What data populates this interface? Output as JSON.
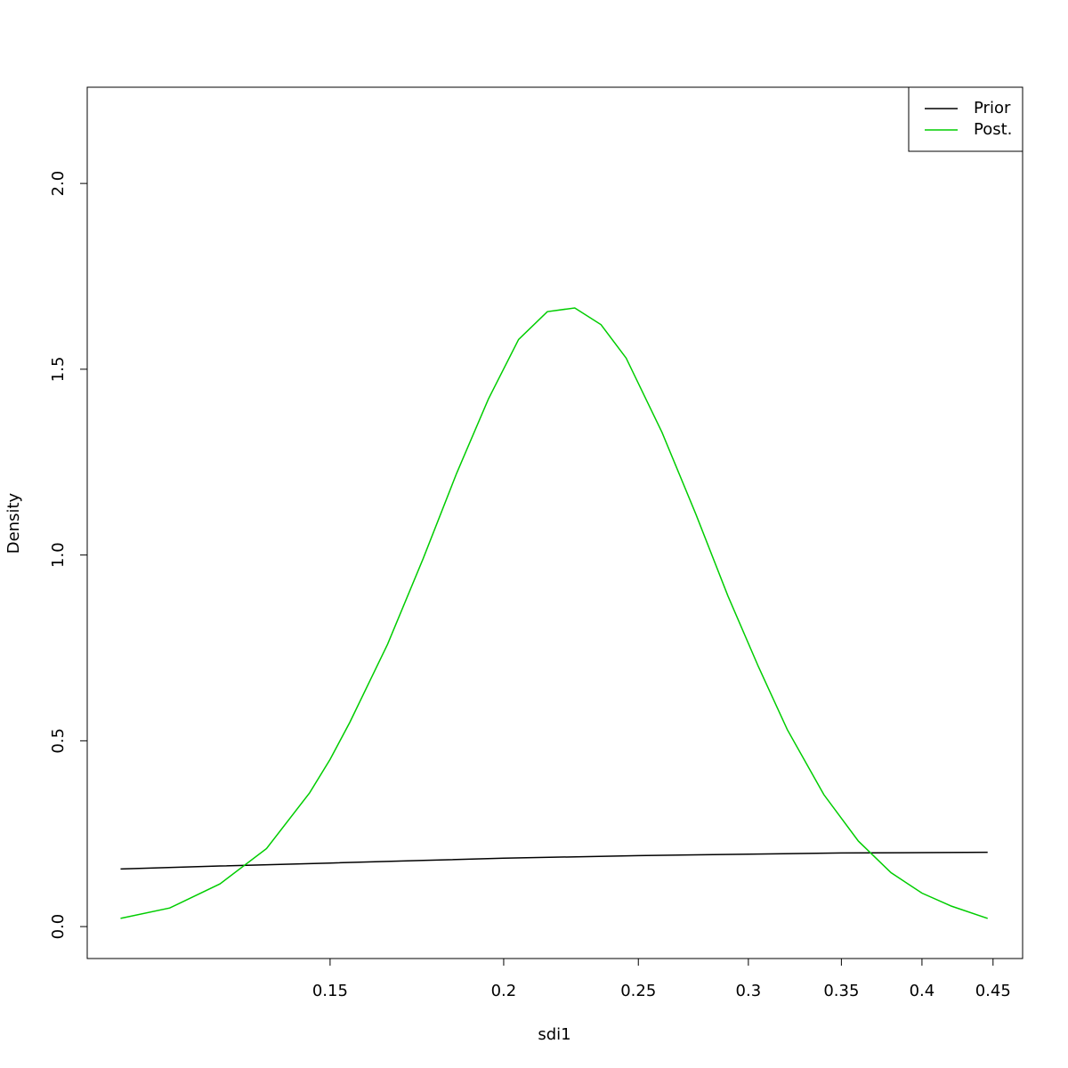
{
  "chart_data": {
    "type": "line",
    "xlabel": "sdi1",
    "ylabel": "Density",
    "xlog": true,
    "xlim": [
      0.1003,
      0.4726
    ],
    "ylim": [
      -0.086,
      2.259
    ],
    "xticks": [
      0.15,
      0.2,
      0.25,
      0.3,
      0.35,
      0.4,
      0.45
    ],
    "yticks": [
      0.0,
      0.5,
      1.0,
      1.5,
      2.0
    ],
    "legend": "top-right",
    "series": [
      {
        "name": "Prior",
        "color": "#000000",
        "x": [
          0.106,
          0.125,
          0.15,
          0.175,
          0.2,
          0.25,
          0.3,
          0.35,
          0.4,
          0.446
        ],
        "values": [
          0.155,
          0.163,
          0.171,
          0.178,
          0.184,
          0.191,
          0.195,
          0.198,
          0.199,
          0.2
        ]
      },
      {
        "name": "Post.",
        "color": "#00cd00",
        "x": [
          0.106,
          0.115,
          0.125,
          0.135,
          0.145,
          0.15,
          0.155,
          0.165,
          0.175,
          0.185,
          0.195,
          0.205,
          0.215,
          0.225,
          0.235,
          0.245,
          0.26,
          0.275,
          0.29,
          0.305,
          0.32,
          0.34,
          0.36,
          0.38,
          0.4,
          0.42,
          0.446
        ],
        "values": [
          0.022,
          0.05,
          0.115,
          0.21,
          0.36,
          0.45,
          0.55,
          0.76,
          0.99,
          1.22,
          1.42,
          1.58,
          1.655,
          1.665,
          1.62,
          1.53,
          1.33,
          1.11,
          0.89,
          0.7,
          0.53,
          0.355,
          0.23,
          0.145,
          0.09,
          0.055,
          0.022
        ]
      }
    ]
  }
}
